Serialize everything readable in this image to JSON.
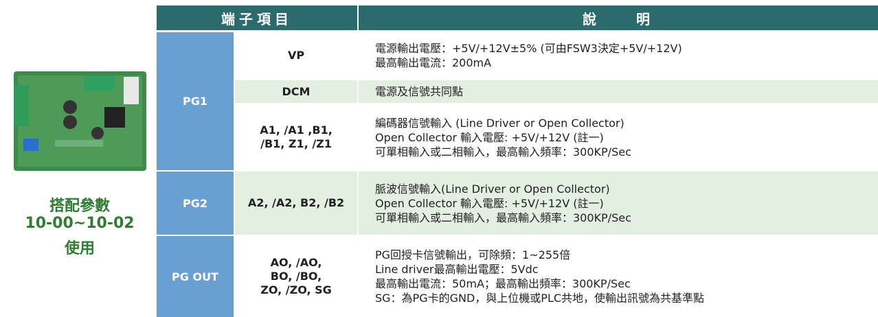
{
  "sidebar": {
    "lines": [
      "搭配參數",
      "10-00~10-02",
      "使用"
    ]
  },
  "table": {
    "header": [
      "端子項目",
      "說　　明"
    ],
    "groups": [
      {
        "name": "PG1",
        "rows": [
          {
            "terminal": [
              "VP"
            ],
            "description": [
              "電源輸出電壓：+5V/+12V±5% (可由FSW3決定+5V/+12V)",
              "最高輸出電流：200mA"
            ]
          },
          {
            "terminal": [
              "DCM"
            ],
            "description": [
              "電源及信號共同點"
            ]
          },
          {
            "terminal": [
              "A1, /A1 ,B1,",
              "/B1, Z1, /Z1"
            ],
            "description": [
              "編碼器信號輸入 (Line Driver or Open Collector)",
              "Open Collector 輸入電壓: +5V/+12V (註一)",
              "可單相輸入或二相輸入，最高輸入頻率：300KP/Sec"
            ]
          }
        ]
      },
      {
        "name": "PG2",
        "rows": [
          {
            "terminal": [
              "A2, /A2, B2, /B2"
            ],
            "description": [
              "脈波信號輸入(Line Driver or Open Collector)",
              "Open Collector 輸入電壓: +5V/+12V (註一)",
              "可單相輸入或二相輸入，最高輸入頻率：300KP/Sec"
            ]
          }
        ]
      },
      {
        "name": "PG OUT",
        "rows": [
          {
            "terminal": [
              "AO, /AO,",
              "BO, /BO,",
              "ZO, /ZO, SG"
            ],
            "description": [
              "PG回授卡信號輸出，可除頻：1~255倍",
              "Line driver最高輸出電壓：5Vdc",
              "最高輸出電流：50mA；最高輸出頻率：300KP/Sec",
              "SG：為PG卡的GND，與上位機或PLC共地，使輸出訊號為共基準點"
            ]
          }
        ]
      }
    ]
  }
}
